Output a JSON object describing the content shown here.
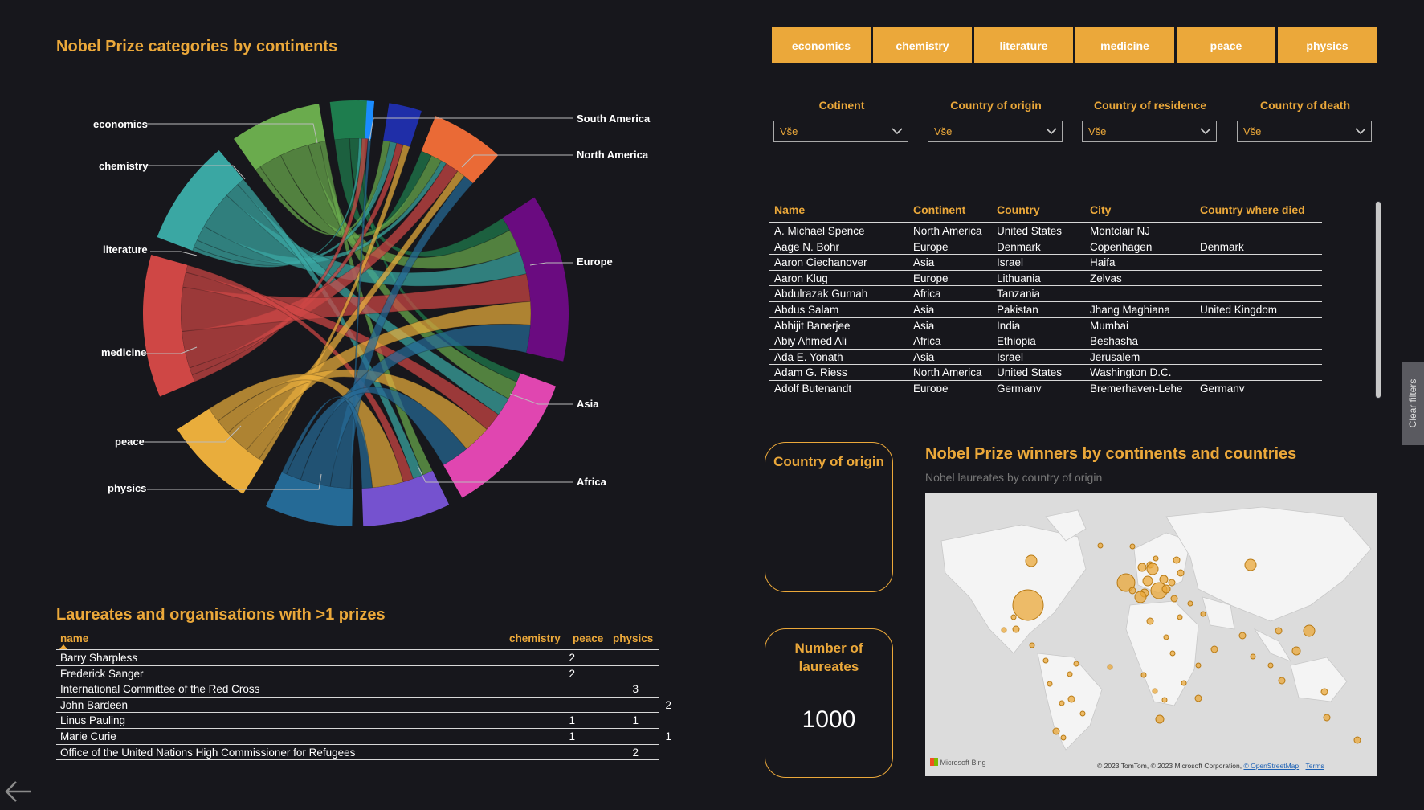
{
  "chord_chart": {
    "title": "Nobel Prize categories by continents",
    "left_labels": [
      "economics",
      "chemistry",
      "literature",
      "medicine",
      "peace",
      "physics"
    ],
    "right_labels": [
      "South America",
      "North America",
      "Europe",
      "Asia",
      "Africa"
    ],
    "colors": {
      "economics": "#1e7d4e",
      "chemistry": "#6aab4d",
      "literature": "#3aa7a3",
      "medicine": "#cf4745",
      "peace": "#e9ad3c",
      "physics": "#256a96",
      "Oceania": "#1a8cff",
      "South America": "#1f2ea8",
      "North America": "#ea6a36",
      "Europe": "#6a0b80",
      "Asia": "#e046b0",
      "Africa": "#7552cf"
    }
  },
  "category_buttons": [
    "economics",
    "chemistry",
    "literature",
    "medicine",
    "peace",
    "physics"
  ],
  "category_color": "#eba83a",
  "slicers": [
    {
      "label": "Cotinent",
      "value": "Vše"
    },
    {
      "label": "Country of origin",
      "value": "Vše"
    },
    {
      "label": "Country of residence",
      "value": "Vše"
    },
    {
      "label": "Country of death",
      "value": "Vše"
    }
  ],
  "laureates_table": {
    "headers": [
      "Name",
      "Continent",
      "Country",
      "City",
      "Country where died"
    ],
    "rows": [
      [
        "A. Michael Spence",
        "North America",
        "United States",
        "Montclair NJ",
        ""
      ],
      [
        "Aage N. Bohr",
        "Europe",
        "Denmark",
        "Copenhagen",
        "Denmark"
      ],
      [
        "Aaron Ciechanover",
        "Asia",
        "Israel",
        "Haifa",
        ""
      ],
      [
        "Aaron Klug",
        "Europe",
        "Lithuania",
        "Zelvas",
        ""
      ],
      [
        "Abdulrazak Gurnah",
        "Africa",
        "Tanzania",
        "",
        ""
      ],
      [
        "Abdus Salam",
        "Asia",
        "Pakistan",
        "Jhang Maghiana",
        "United Kingdom"
      ],
      [
        "Abhijit Banerjee",
        "Asia",
        "India",
        "Mumbai",
        ""
      ],
      [
        "Abiy Ahmed Ali",
        "Africa",
        "Ethiopia",
        "Beshasha",
        ""
      ],
      [
        "Ada E. Yonath",
        "Asia",
        "Israel",
        "Jerusalem",
        ""
      ],
      [
        "Adam G. Riess",
        "North America",
        "United States",
        "Washington D.C.",
        ""
      ],
      [
        "Adolf Butenandt",
        "Europe",
        "Germany",
        "Bremerhaven-Lehe",
        "Germany"
      ]
    ]
  },
  "clear_filters_label": "Clear filters",
  "cards": {
    "origin_title": "Country of origin",
    "laureates_title": "Number of laureates",
    "laureates_value": "1000"
  },
  "map": {
    "title": "Nobel Prize winners by continents and countries",
    "subtitle": "Nobel laureates by country of origin",
    "brand": "Microsoft Bing",
    "attribution": "© 2023 TomTom, © 2023 Microsoft Corporation,",
    "osm_link": "© OpenStreetMap",
    "terms_link": "Terms"
  },
  "prizes_table": {
    "title": "Laureates and organisations with >1 prizes",
    "headers": [
      "name",
      "chemistry",
      "peace",
      "physics"
    ],
    "rows": [
      {
        "name": "Barry Sharpless",
        "chemistry": "2",
        "peace": "",
        "physics": ""
      },
      {
        "name": "Frederick Sanger",
        "chemistry": "2",
        "peace": "",
        "physics": ""
      },
      {
        "name": "International Committee of the Red Cross",
        "chemistry": "",
        "peace": "3",
        "physics": ""
      },
      {
        "name": "John Bardeen",
        "chemistry": "",
        "peace": "",
        "physics": "2"
      },
      {
        "name": "Linus Pauling",
        "chemistry": "1",
        "peace": "1",
        "physics": ""
      },
      {
        "name": "Marie Curie",
        "chemistry": "1",
        "peace": "",
        "physics": "1"
      },
      {
        "name": "Office of the United Nations High Commissioner for Refugees",
        "chemistry": "",
        "peace": "2",
        "physics": ""
      }
    ]
  }
}
